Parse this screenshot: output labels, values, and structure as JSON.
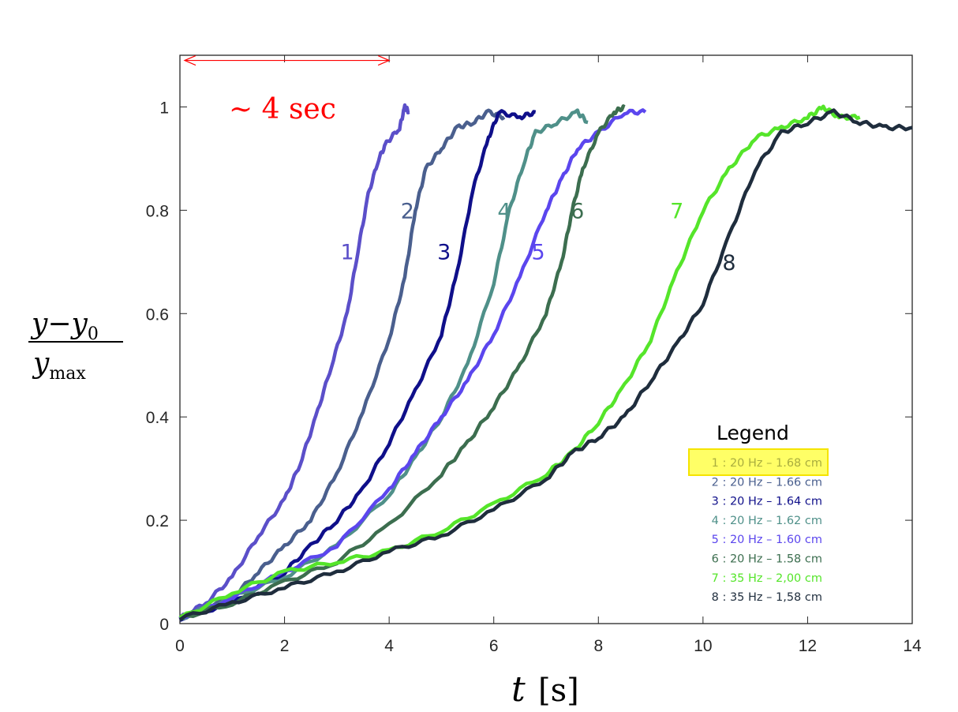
{
  "chart_data": {
    "type": "line",
    "xlabel_var": "t",
    "xlabel_unit": "[s]",
    "ylabel_numerator": "y−y",
    "ylabel_numerator_sub": "0",
    "ylabel_denominator": "y",
    "ylabel_denominator_sub": "max",
    "xlim": [
      0,
      14
    ],
    "ylim": [
      0,
      1.1
    ],
    "xticks": [
      0,
      2,
      4,
      6,
      8,
      10,
      12,
      14
    ],
    "yticks": [
      0,
      0.2,
      0.4,
      0.6,
      0.8,
      1
    ],
    "grid": false,
    "annotation": {
      "text": "∼ 4 sec",
      "from": 0,
      "to": 4,
      "y": 1.09,
      "color": "#ff0000"
    },
    "legend": {
      "title": "Legend",
      "placement": "bottom-right",
      "highlight_color": "#ffff66",
      "entries": [
        "1 : 20 Hz – 1.68 cm",
        "2 : 20 Hz – 1.66 cm",
        "3 : 20 Hz – 1.64 cm",
        "4 : 20 Hz – 1.62 cm",
        "5 : 20 Hz – 1.60 cm",
        "6 : 20 Hz – 1.58 cm",
        "7 : 35 Hz – 2,00 cm",
        "8 : 35 Hz – 1,58 cm"
      ],
      "entry_colors": [
        "#a9ad3f",
        "#4a5f8e",
        "#0f0f8a",
        "#4f9089",
        "#5b46ee",
        "#3c6e4f",
        "#55e52a",
        "#1f2d3d"
      ]
    },
    "series": [
      {
        "label": "1",
        "color": "#5b4fc9",
        "label_at": [
          3.2,
          0.72
        ],
        "points": [
          [
            0,
            0.01
          ],
          [
            0.5,
            0.04
          ],
          [
            1,
            0.09
          ],
          [
            1.5,
            0.17
          ],
          [
            2,
            0.24
          ],
          [
            2.3,
            0.31
          ],
          [
            2.6,
            0.4
          ],
          [
            2.9,
            0.5
          ],
          [
            3.2,
            0.6
          ],
          [
            3.4,
            0.72
          ],
          [
            3.6,
            0.83
          ],
          [
            3.8,
            0.9
          ],
          [
            3.95,
            0.93
          ],
          [
            4.2,
            0.96
          ],
          [
            4.3,
            1.0
          ],
          [
            4.38,
            0.99
          ]
        ]
      },
      {
        "label": "2",
        "color": "#4a5f8e",
        "label_at": [
          4.35,
          0.8
        ],
        "points": [
          [
            0,
            0.01
          ],
          [
            1,
            0.05
          ],
          [
            1.5,
            0.1
          ],
          [
            2,
            0.15
          ],
          [
            2.5,
            0.2
          ],
          [
            3,
            0.29
          ],
          [
            3.5,
            0.41
          ],
          [
            4,
            0.55
          ],
          [
            4.3,
            0.67
          ],
          [
            4.5,
            0.8
          ],
          [
            4.7,
            0.88
          ],
          [
            5,
            0.92
          ],
          [
            5.3,
            0.96
          ],
          [
            5.6,
            0.97
          ],
          [
            5.9,
            0.99
          ],
          [
            6.2,
            0.98
          ]
        ]
      },
      {
        "label": "3",
        "color": "#0f0f8a",
        "label_at": [
          5.05,
          0.72
        ],
        "points": [
          [
            0,
            0.01
          ],
          [
            1,
            0.04
          ],
          [
            2,
            0.1
          ],
          [
            2.5,
            0.15
          ],
          [
            3,
            0.2
          ],
          [
            3.5,
            0.26
          ],
          [
            4,
            0.35
          ],
          [
            4.5,
            0.45
          ],
          [
            5,
            0.56
          ],
          [
            5.3,
            0.68
          ],
          [
            5.6,
            0.84
          ],
          [
            5.9,
            0.94
          ],
          [
            6.1,
            0.99
          ],
          [
            6.5,
            0.98
          ],
          [
            6.8,
            0.99
          ]
        ]
      },
      {
        "label": "4",
        "color": "#4f9089",
        "label_at": [
          6.2,
          0.8
        ],
        "points": [
          [
            0,
            0.01
          ],
          [
            1,
            0.05
          ],
          [
            2,
            0.09
          ],
          [
            3,
            0.15
          ],
          [
            4,
            0.25
          ],
          [
            4.5,
            0.32
          ],
          [
            5,
            0.4
          ],
          [
            5.5,
            0.5
          ],
          [
            6,
            0.66
          ],
          [
            6.3,
            0.8
          ],
          [
            6.6,
            0.9
          ],
          [
            6.8,
            0.95
          ],
          [
            7.2,
            0.97
          ],
          [
            7.6,
            0.99
          ],
          [
            7.8,
            0.97
          ]
        ]
      },
      {
        "label": "5",
        "color": "#5b46ee",
        "label_at": [
          6.85,
          0.72
        ],
        "points": [
          [
            0,
            0.01
          ],
          [
            1,
            0.05
          ],
          [
            2,
            0.1
          ],
          [
            3,
            0.15
          ],
          [
            4,
            0.26
          ],
          [
            4.5,
            0.33
          ],
          [
            5,
            0.4
          ],
          [
            5.5,
            0.47
          ],
          [
            6,
            0.56
          ],
          [
            6.5,
            0.67
          ],
          [
            7,
            0.8
          ],
          [
            7.3,
            0.86
          ],
          [
            7.6,
            0.92
          ],
          [
            8,
            0.95
          ],
          [
            8.5,
            0.99
          ],
          [
            8.9,
            0.99
          ]
        ]
      },
      {
        "label": "6",
        "color": "#3c6e4f",
        "label_at": [
          7.6,
          0.8
        ],
        "points": [
          [
            0,
            0.01
          ],
          [
            1,
            0.04
          ],
          [
            2,
            0.08
          ],
          [
            3,
            0.12
          ],
          [
            4,
            0.19
          ],
          [
            5,
            0.29
          ],
          [
            5.5,
            0.35
          ],
          [
            6,
            0.42
          ],
          [
            6.5,
            0.5
          ],
          [
            7,
            0.6
          ],
          [
            7.3,
            0.7
          ],
          [
            7.5,
            0.8
          ],
          [
            7.7,
            0.88
          ],
          [
            8,
            0.95
          ],
          [
            8.3,
            0.99
          ],
          [
            8.5,
            1.0
          ]
        ]
      },
      {
        "label": "7",
        "color": "#55e52a",
        "label_at": [
          9.5,
          0.8
        ],
        "points": [
          [
            0,
            0.01
          ],
          [
            1,
            0.06
          ],
          [
            2,
            0.1
          ],
          [
            3,
            0.12
          ],
          [
            4,
            0.14
          ],
          [
            5,
            0.18
          ],
          [
            6,
            0.23
          ],
          [
            7,
            0.29
          ],
          [
            7.5,
            0.33
          ],
          [
            8,
            0.39
          ],
          [
            8.5,
            0.46
          ],
          [
            9,
            0.55
          ],
          [
            9.5,
            0.68
          ],
          [
            10,
            0.8
          ],
          [
            10.5,
            0.88
          ],
          [
            11,
            0.94
          ],
          [
            11.5,
            0.96
          ],
          [
            12,
            0.98
          ],
          [
            12.3,
            1.0
          ],
          [
            12.6,
            0.98
          ],
          [
            13,
            0.98
          ]
        ]
      },
      {
        "label": "8",
        "color": "#1f2d3d",
        "label_at": [
          10.5,
          0.7
        ],
        "points": [
          [
            0,
            0.01
          ],
          [
            1,
            0.04
          ],
          [
            2,
            0.07
          ],
          [
            3,
            0.1
          ],
          [
            4,
            0.14
          ],
          [
            5,
            0.17
          ],
          [
            6,
            0.22
          ],
          [
            7,
            0.28
          ],
          [
            7.5,
            0.33
          ],
          [
            8,
            0.36
          ],
          [
            8.5,
            0.4
          ],
          [
            9,
            0.47
          ],
          [
            9.5,
            0.54
          ],
          [
            10,
            0.62
          ],
          [
            10.5,
            0.75
          ],
          [
            11,
            0.88
          ],
          [
            11.5,
            0.95
          ],
          [
            12,
            0.97
          ],
          [
            12.5,
            0.99
          ],
          [
            13,
            0.97
          ],
          [
            13.5,
            0.96
          ],
          [
            14,
            0.96
          ]
        ]
      }
    ]
  }
}
